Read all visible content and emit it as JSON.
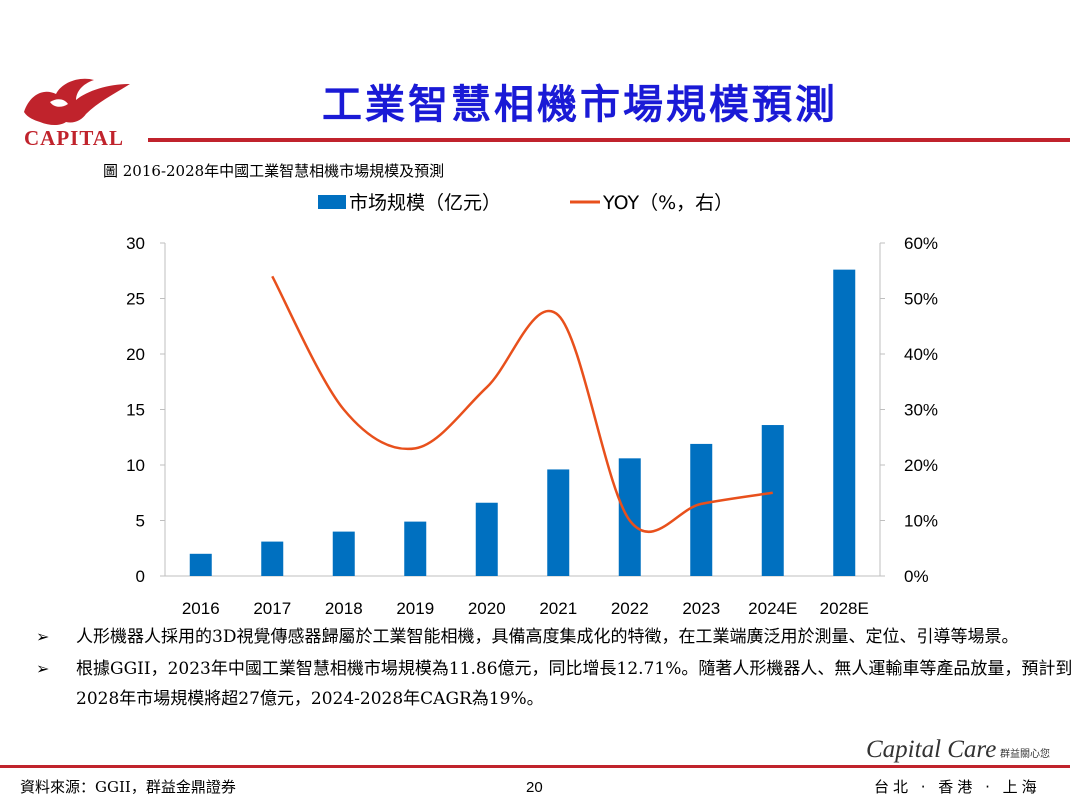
{
  "header": {
    "logo_text": "CAPITAL",
    "title": "工業智慧相機市場規模預測"
  },
  "figure_caption": "圖 2016-2028年中國工業智慧相機市場規模及預測",
  "chart_data": {
    "type": "bar",
    "categories": [
      "2016",
      "2017",
      "2018",
      "2019",
      "2020",
      "2021",
      "2022",
      "2023",
      "2024E",
      "2028E"
    ],
    "series": [
      {
        "name": "市场规模（亿元）",
        "type": "bar",
        "axis": "left",
        "color": "#0070c0",
        "values": [
          2.0,
          3.1,
          4.0,
          4.9,
          6.6,
          9.6,
          10.6,
          11.9,
          13.6,
          27.6
        ]
      },
      {
        "name": "YOY（%，右）",
        "type": "line",
        "axis": "right",
        "color": "#e8501c",
        "values": [
          null,
          54,
          30,
          23,
          34,
          47,
          10,
          13,
          15,
          null
        ]
      }
    ],
    "y_left": {
      "ylim": [
        0,
        30
      ],
      "ticks": [
        "0",
        "5",
        "10",
        "15",
        "20",
        "25",
        "30"
      ]
    },
    "y_right": {
      "ylim": [
        0,
        60
      ],
      "ticks": [
        "0%",
        "10%",
        "20%",
        "30%",
        "40%",
        "50%",
        "60%"
      ]
    },
    "legend_position": "top",
    "grid": false
  },
  "bullets": [
    "人形機器人採用的3D視覺傳感器歸屬於工業智能相機，具備高度集成化的特徵，在工業端廣泛用於測量、定位、引導等場景。",
    "根據GGII，2023年中國工業智慧相機市場規模為11.86億元，同比增長12.71%。隨著人形機器人、無人運輸車等產品放量，預計到2028年市場規模將超27億元，2024-2028年CAGR為19%。"
  ],
  "footer": {
    "source": "資料來源：GGII，群益金鼎證券",
    "page_number": "20",
    "brand": "Capital Care",
    "tagline": "群益關心您",
    "cities": "台北 · 香港 · 上海"
  }
}
